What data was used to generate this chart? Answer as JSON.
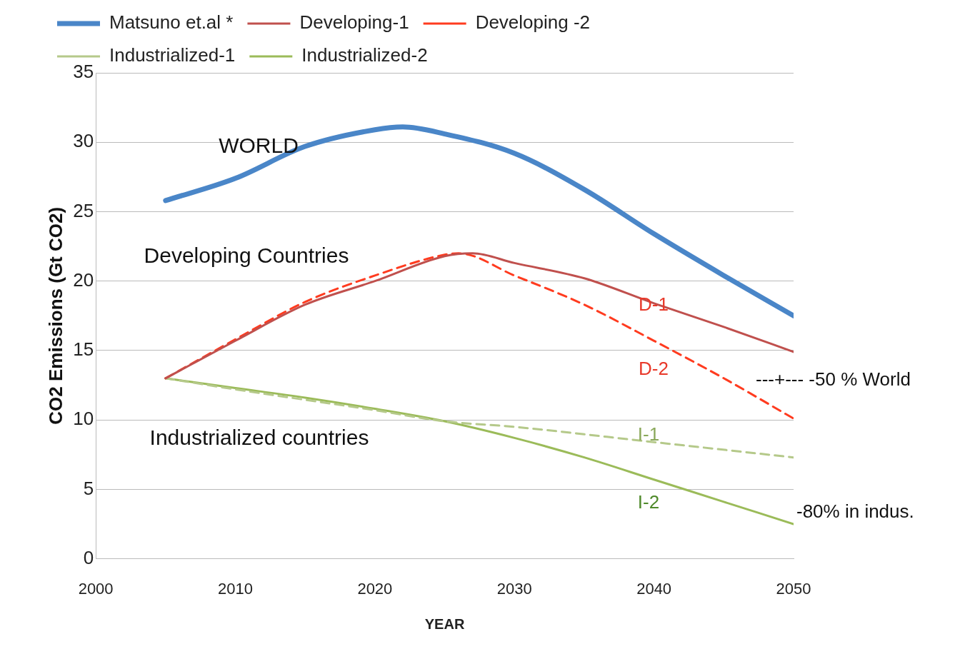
{
  "chart_data": {
    "type": "line",
    "xlabel": "YEAR",
    "ylabel": "CO2 Emissions (Gt CO2)",
    "xlim": [
      2000,
      2050
    ],
    "xticks": [
      2000,
      2010,
      2020,
      2030,
      2040,
      2050
    ],
    "ylim": [
      0,
      35
    ],
    "yticks": [
      0,
      5,
      10,
      15,
      20,
      25,
      30,
      35
    ],
    "grid": "y",
    "legend": "top",
    "line_style": "solid",
    "series": [
      {
        "name": "Matsuno et.al *",
        "color": "#4a86c8",
        "x": [
          2005,
          2010,
          2015,
          2020,
          2022,
          2025,
          2030,
          2035,
          2040,
          2045,
          2050
        ],
        "values": [
          25.8,
          27.4,
          29.7,
          30.9,
          31.1,
          30.6,
          29.2,
          26.6,
          23.4,
          20.4,
          17.5
        ]
      },
      {
        "name": "Developing-1",
        "color": "#c0504d",
        "x": [
          2005,
          2010,
          2015,
          2020,
          2025,
          2027,
          2030,
          2035,
          2040,
          2045,
          2050
        ],
        "values": [
          13.0,
          15.7,
          18.3,
          20.0,
          21.8,
          22.0,
          21.3,
          20.2,
          18.4,
          16.7,
          14.9
        ]
      },
      {
        "name": "Developing -2",
        "color": "#ff3b1f",
        "line_style": "dashed",
        "x": [
          2005,
          2010,
          2015,
          2020,
          2025,
          2026,
          2030,
          2035,
          2040,
          2045,
          2050
        ],
        "values": [
          13.0,
          15.8,
          18.5,
          20.4,
          21.9,
          22.0,
          20.4,
          18.3,
          15.7,
          13.0,
          10.1
        ]
      },
      {
        "name": "Industrialized-1",
        "color": "#b5c98a",
        "line_style": "dashed",
        "x": [
          2005,
          2010,
          2020,
          2025,
          2030,
          2040,
          2050
        ],
        "values": [
          13.0,
          12.2,
          10.7,
          9.9,
          9.5,
          8.4,
          7.3
        ]
      },
      {
        "name": "Industrialized-2",
        "color": "#9bbb59",
        "x": [
          2005,
          2010,
          2015,
          2020,
          2025,
          2030,
          2035,
          2040,
          2045,
          2050
        ],
        "values": [
          13.0,
          12.3,
          11.6,
          10.8,
          9.9,
          8.7,
          7.3,
          5.7,
          4.1,
          2.5
        ]
      }
    ],
    "annotations": [
      "WORLD",
      "Developing Countries",
      "Industrialized countries",
      "D-1",
      "D-2",
      "I-1",
      "I-2",
      "---+--- -50 % World",
      "-80% in indus."
    ]
  }
}
